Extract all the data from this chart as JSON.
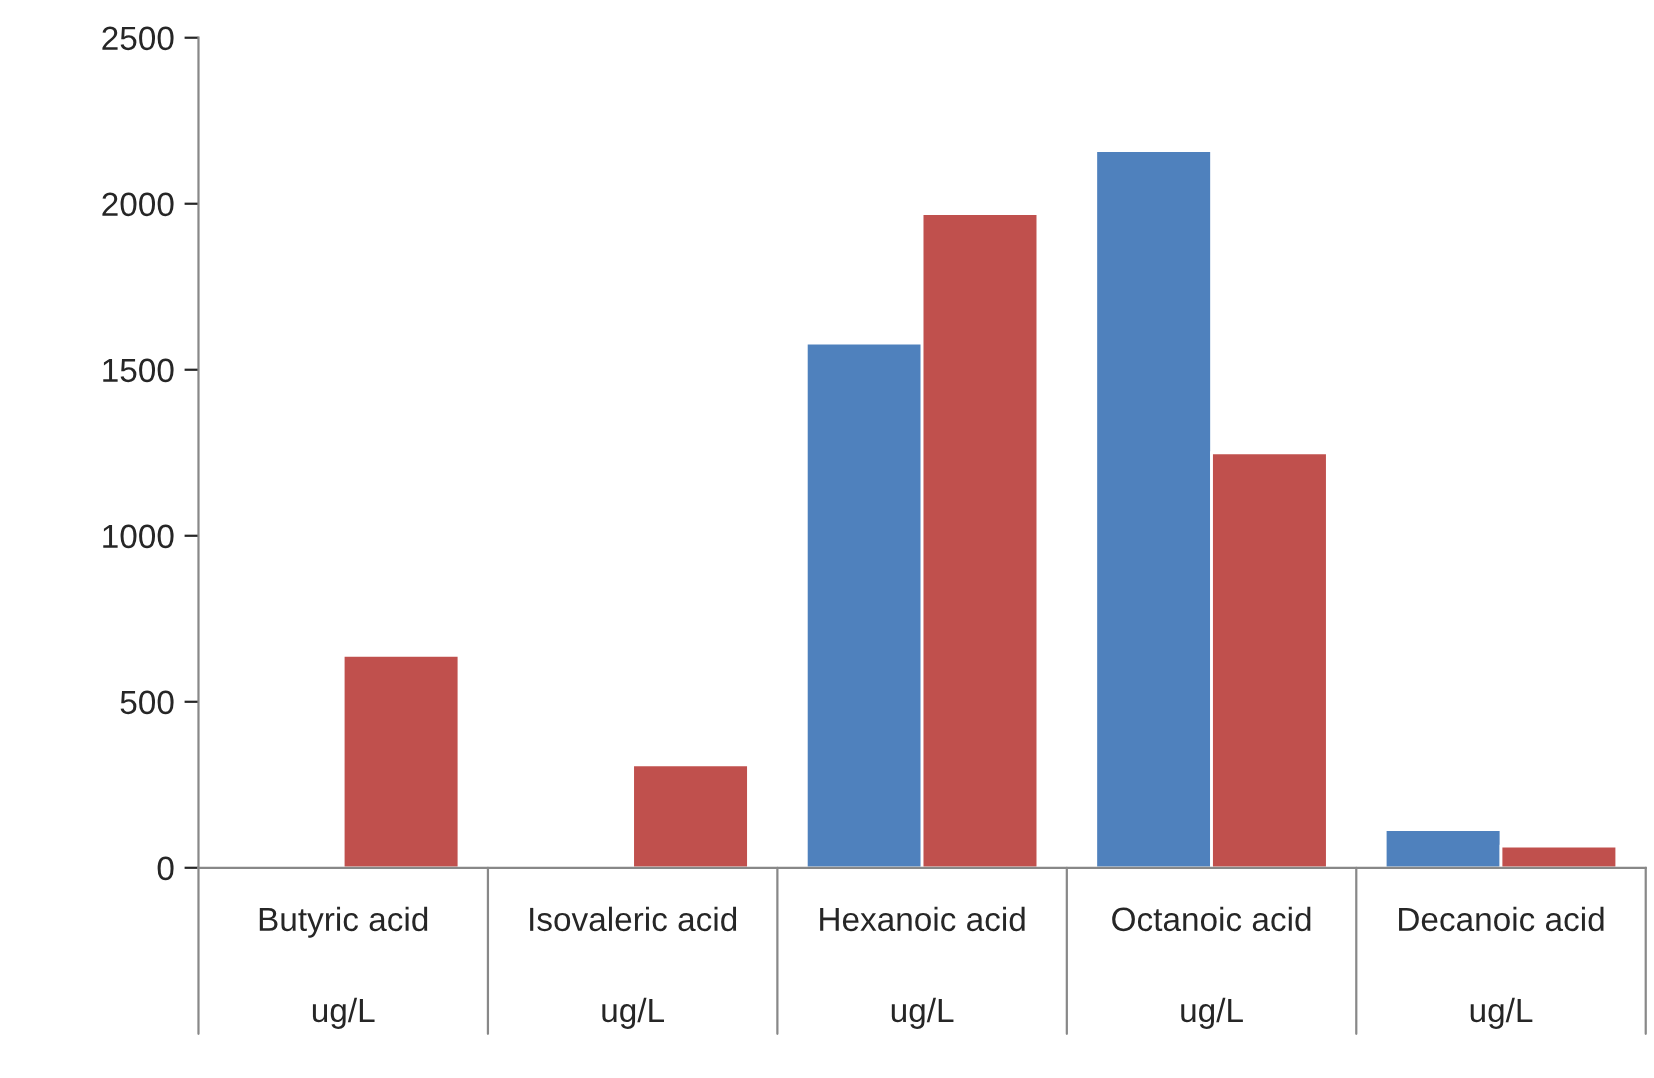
{
  "chart_data": {
    "type": "bar",
    "categories": [
      "Butyric acid\n\nug/L",
      "Isovaleric acid\n\nug/L",
      "Hexanoic acid\n\nug/L",
      "Octanoic acid\n\nug/L",
      "Decanoic acid\n\nug/L"
    ],
    "series": [
      {
        "color": "#4f81bd",
        "values": [
          null,
          null,
          1580,
          2160,
          115
        ]
      },
      {
        "color": "#c0504d",
        "values": [
          640,
          310,
          1970,
          1250,
          65
        ]
      }
    ],
    "ylim": [
      0,
      2500
    ],
    "yticks": [
      0,
      500,
      1000,
      1500,
      2000,
      2500
    ],
    "grid": false,
    "legend": false
  }
}
